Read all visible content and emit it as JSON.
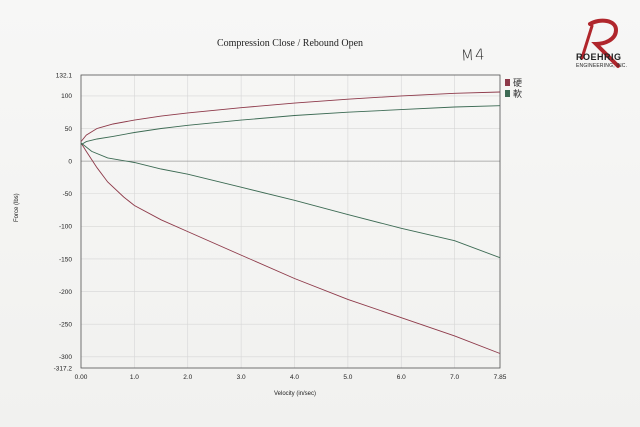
{
  "header": {
    "title": "Compression Close / Rebound Open",
    "handwritten_note": "M4"
  },
  "brand": {
    "name": "ROEHRIG",
    "tagline": "ENGINEERING, INC.",
    "color": "#b0262c"
  },
  "chart_data": {
    "type": "line",
    "title": "Compression Close / Rebound Open",
    "xlabel": "Velocity (in/sec)",
    "ylabel": "Force (lbs)",
    "xlim": [
      0,
      7.85
    ],
    "ylim": [
      -317.2,
      132.1
    ],
    "x_ticks": [
      "0.00",
      "1.0",
      "2.0",
      "3.0",
      "4.0",
      "5.0",
      "6.0",
      "7.0",
      "7.85"
    ],
    "y_ticks": [
      "132.1",
      "100",
      "50",
      "0",
      "-50",
      "-100",
      "-150",
      "-200",
      "-250",
      "-300",
      "-317.2"
    ],
    "grid": true,
    "legend_position": "right-top",
    "series": [
      {
        "name": "硬",
        "color": "#8e3a4a",
        "compression": {
          "x": [
            0,
            0.1,
            0.3,
            0.6,
            1.0,
            1.5,
            2.0,
            3.0,
            4.0,
            5.0,
            6.0,
            7.0,
            7.85
          ],
          "y": [
            30,
            40,
            50,
            57,
            63,
            69,
            74,
            82,
            89,
            95,
            100,
            104,
            106
          ]
        },
        "rebound": {
          "x": [
            0,
            0.1,
            0.3,
            0.5,
            0.8,
            1.0,
            1.5,
            2.0,
            3.0,
            4.0,
            5.0,
            6.0,
            7.0,
            7.85
          ],
          "y": [
            28,
            15,
            -10,
            -32,
            -55,
            -68,
            -90,
            -108,
            -144,
            -180,
            -212,
            -240,
            -268,
            -295
          ]
        }
      },
      {
        "name": "軟",
        "color": "#3d6b54",
        "compression": {
          "x": [
            0,
            0.1,
            0.3,
            0.6,
            1.0,
            1.5,
            2.0,
            3.0,
            4.0,
            5.0,
            6.0,
            7.0,
            7.85
          ],
          "y": [
            25,
            30,
            34,
            38,
            44,
            50,
            55,
            63,
            70,
            75,
            79,
            83,
            85
          ]
        },
        "rebound": {
          "x": [
            0,
            0.2,
            0.5,
            1.0,
            1.5,
            2.0,
            3.0,
            4.0,
            5.0,
            6.0,
            7.0,
            7.85
          ],
          "y": [
            28,
            15,
            5,
            -2,
            -12,
            -20,
            -40,
            -60,
            -82,
            -103,
            -122,
            -148
          ]
        }
      }
    ]
  }
}
